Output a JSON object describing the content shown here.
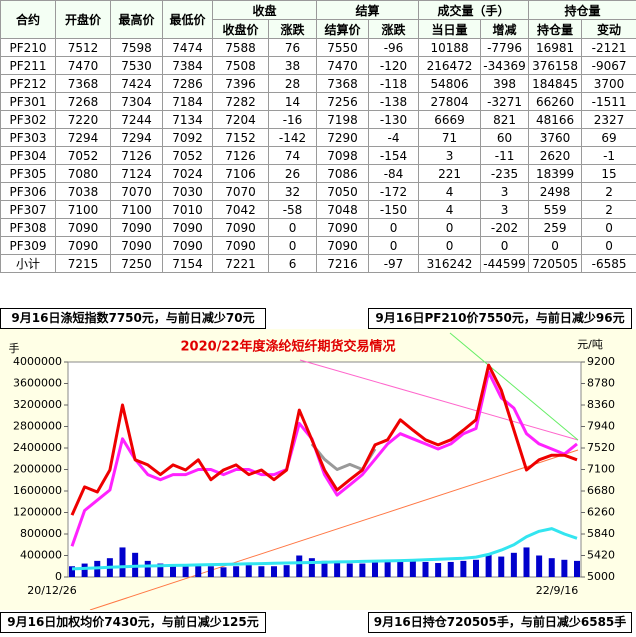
{
  "table": {
    "header_top": [
      "合约",
      "开盘价",
      "最高价",
      "最低价",
      "收盘",
      "结算",
      "成交量（手）",
      "持仓量"
    ],
    "header_sub": [
      "收盘价",
      "涨跌",
      "结算价",
      "涨跌",
      "当日量",
      "增减",
      "持仓量",
      "变动"
    ],
    "rows": [
      [
        "PF210",
        "7512",
        "7598",
        "7474",
        "7588",
        "76",
        "7550",
        "-96",
        "10188",
        "-7796",
        "16981",
        "-2121"
      ],
      [
        "PF211",
        "7470",
        "7530",
        "7384",
        "7508",
        "38",
        "7470",
        "-120",
        "216472",
        "-34369",
        "376158",
        "-9067"
      ],
      [
        "PF212",
        "7368",
        "7424",
        "7286",
        "7396",
        "28",
        "7368",
        "-118",
        "54806",
        "398",
        "184845",
        "3700"
      ],
      [
        "PF301",
        "7268",
        "7304",
        "7184",
        "7282",
        "14",
        "7256",
        "-138",
        "27804",
        "-3271",
        "66260",
        "-1511"
      ],
      [
        "PF302",
        "7220",
        "7244",
        "7134",
        "7204",
        "-16",
        "7198",
        "-130",
        "6669",
        "821",
        "48166",
        "2327"
      ],
      [
        "PF303",
        "7294",
        "7294",
        "7092",
        "7152",
        "-142",
        "7290",
        "-4",
        "71",
        "60",
        "3760",
        "69"
      ],
      [
        "PF304",
        "7052",
        "7126",
        "7052",
        "7126",
        "74",
        "7098",
        "-154",
        "3",
        "-11",
        "2620",
        "-1"
      ],
      [
        "PF305",
        "7080",
        "7124",
        "7024",
        "7106",
        "26",
        "7086",
        "-84",
        "221",
        "-235",
        "18399",
        "15"
      ],
      [
        "PF306",
        "7038",
        "7070",
        "7030",
        "7070",
        "32",
        "7050",
        "-172",
        "4",
        "3",
        "2498",
        "2"
      ],
      [
        "PF307",
        "7100",
        "7100",
        "7010",
        "7042",
        "-58",
        "7048",
        "-150",
        "4",
        "3",
        "559",
        "2"
      ],
      [
        "PF308",
        "7090",
        "7090",
        "7090",
        "7090",
        "0",
        "7090",
        "0",
        "0",
        "-202",
        "259",
        "0"
      ],
      [
        "PF309",
        "7090",
        "7090",
        "7090",
        "7090",
        "0",
        "7090",
        "0",
        "0",
        "0",
        "0",
        "0"
      ],
      [
        "小计",
        "7215",
        "7250",
        "7154",
        "7221",
        "6",
        "7216",
        "-97",
        "316242",
        "-44599",
        "720505",
        "-6585"
      ]
    ]
  },
  "notes": {
    "top_left": "9月16日涤短指数7750元，与前日减少70元",
    "top_right": "9月16日PF210价7550元，与前日减少96元",
    "bottom_left": "9月16日加权均价7430元，与前日减少125元",
    "bottom_right": "9月16日持仓720505手，与前日减少6585手"
  },
  "chart_data": {
    "type": "combo",
    "title": "2020/22年度涤纶短纤期货交易情况",
    "ylabel": "手",
    "y2label": "元/吨",
    "categories": [
      "20/12/26",
      null,
      null,
      null,
      null,
      null,
      null,
      null,
      null,
      null,
      null,
      null,
      null,
      null,
      null,
      null,
      null,
      null,
      null,
      null,
      null,
      null,
      null,
      null,
      null,
      null,
      null,
      null,
      null,
      null,
      null,
      null,
      null,
      null,
      null,
      null,
      null,
      null,
      null,
      null,
      "22/9/16"
    ],
    "ylim": [
      0,
      4000000
    ],
    "yticks": [
      0,
      400000,
      800000,
      1200000,
      1600000,
      2000000,
      2400000,
      2800000,
      3200000,
      3600000,
      4000000
    ],
    "y2lim": [
      5000,
      9200
    ],
    "y2ticks": [
      5000,
      5420,
      5840,
      6260,
      6680,
      7100,
      7520,
      7940,
      8360,
      8780,
      9200
    ],
    "series": [
      {
        "kind": "bar",
        "axis": "y",
        "color": "#0000cc",
        "values": [
          200000,
          250000,
          300000,
          350000,
          550000,
          450000,
          300000,
          250000,
          220000,
          200000,
          220000,
          200000,
          180000,
          200000,
          220000,
          200000,
          200000,
          220000,
          400000,
          350000,
          300000,
          280000,
          250000,
          250000,
          280000,
          300000,
          320000,
          300000,
          280000,
          260000,
          280000,
          300000,
          320000,
          420000,
          380000,
          450000,
          550000,
          400000,
          350000,
          320000,
          300000
        ]
      },
      {
        "kind": "line",
        "axis": "y",
        "color": "#33e5f0",
        "values": [
          150000,
          160000,
          170000,
          180000,
          190000,
          200000,
          205000,
          210000,
          215000,
          220000,
          225000,
          230000,
          235000,
          240000,
          245000,
          250000,
          255000,
          260000,
          265000,
          270000,
          275000,
          280000,
          285000,
          290000,
          295000,
          300000,
          305000,
          310000,
          320000,
          330000,
          340000,
          350000,
          370000,
          420000,
          500000,
          600000,
          750000,
          850000,
          900000,
          800000,
          720505
        ]
      },
      {
        "kind": "line",
        "axis": "y2",
        "color": "#999999",
        "values": [
          null,
          null,
          null,
          null,
          null,
          null,
          null,
          null,
          null,
          null,
          null,
          null,
          null,
          null,
          null,
          null,
          null,
          null,
          null,
          7600,
          7300,
          7100,
          7200,
          7100,
          7500,
          null,
          null,
          null,
          null,
          null,
          null,
          null,
          null,
          null,
          null,
          null,
          null,
          null,
          null,
          null,
          null
        ]
      },
      {
        "kind": "line",
        "axis": "y2",
        "color": "#ff22ff",
        "values": [
          5600,
          6300,
          6500,
          6700,
          7700,
          7300,
          7000,
          6900,
          7000,
          7000,
          7100,
          7100,
          7000,
          7100,
          7100,
          7000,
          7000,
          7100,
          8000,
          7700,
          7000,
          6600,
          6800,
          7000,
          7300,
          7600,
          7800,
          7700,
          7600,
          7500,
          7600,
          7800,
          7900,
          9000,
          8500,
          8300,
          7800,
          7600,
          7500,
          7400,
          7600
        ]
      },
      {
        "kind": "line",
        "axis": "y2",
        "color": "#ee0000",
        "values": [
          6210,
          6760,
          6660,
          7090,
          8360,
          7290,
          7190,
          7000,
          7190,
          7090,
          7290,
          6900,
          7090,
          7190,
          7000,
          7090,
          6900,
          7090,
          8260,
          7680,
          7090,
          6700,
          6900,
          7090,
          7580,
          7680,
          8070,
          7870,
          7680,
          7580,
          7680,
          7870,
          8070,
          9140,
          8650,
          7870,
          7090,
          7290,
          7380,
          7380,
          7290
        ]
      }
    ]
  }
}
